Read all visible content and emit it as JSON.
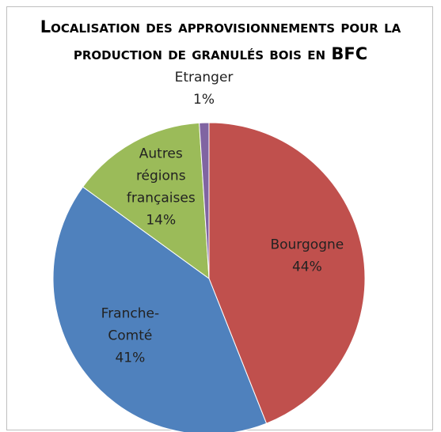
{
  "chart_data": {
    "type": "pie",
    "title": "Localisation des approvisionnements pour la production de granulés bois en BFC",
    "categories": [
      "Bourgogne",
      "Franche-Comté",
      "Autres régions françaises",
      "Etranger"
    ],
    "values": [
      44,
      41,
      14,
      1
    ],
    "value_labels": [
      "44%",
      "41%",
      "14%",
      "1%"
    ],
    "colors": [
      "#c0504d",
      "#4f81bd",
      "#9bbb59",
      "#8064a2"
    ]
  }
}
